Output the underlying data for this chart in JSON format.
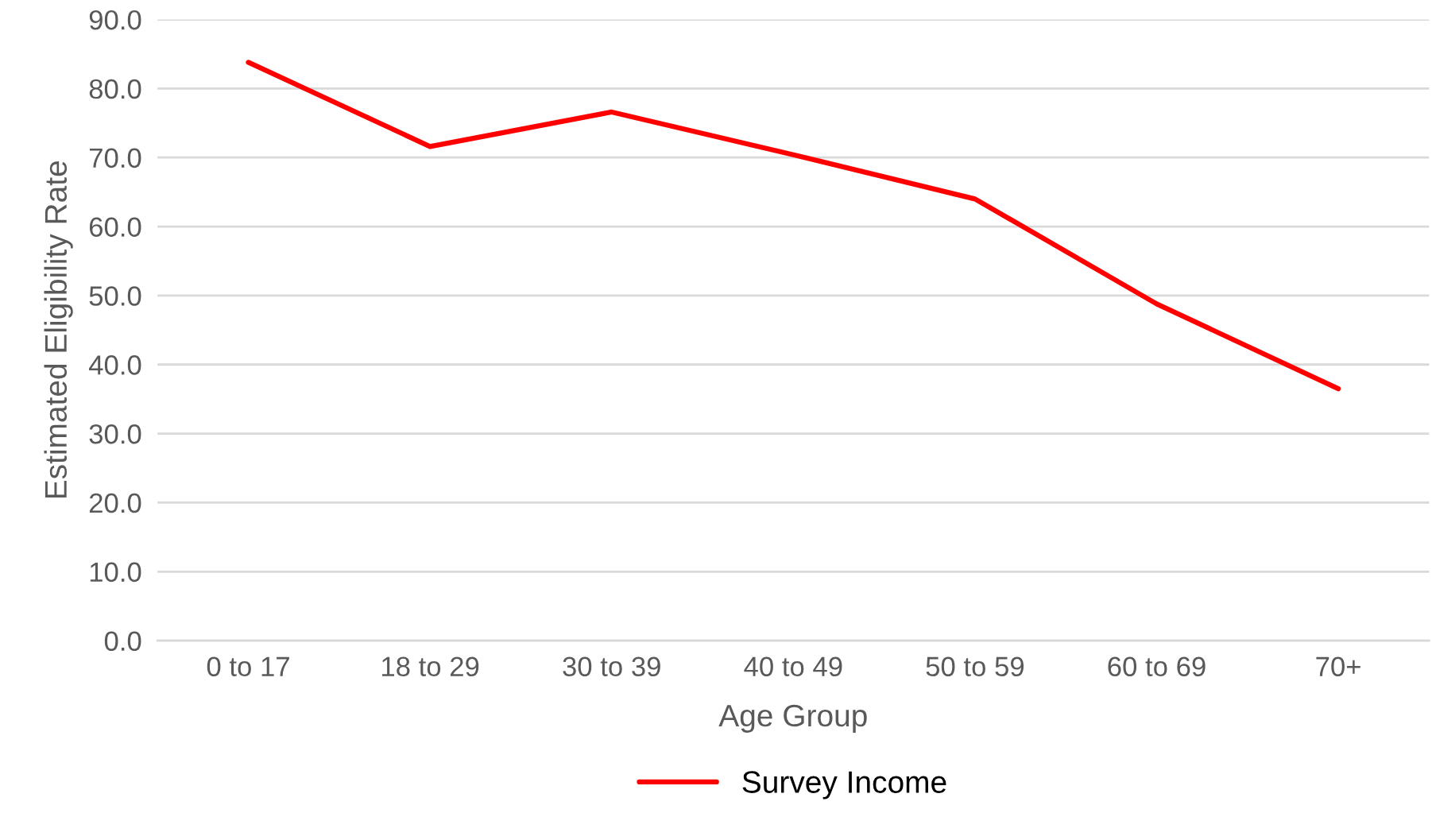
{
  "chart_data": {
    "type": "line",
    "xlabel": "Age Group",
    "ylabel": "Estimated Eligibility Rate",
    "categories": [
      "0 to 17",
      "18 to 29",
      "30 to 39",
      "40 to 49",
      "50 to 59",
      "60 to 69",
      "70+"
    ],
    "series": [
      {
        "name": "Survey Income",
        "color": "#ff0000",
        "values": [
          83.8,
          71.6,
          76.6,
          70.4,
          64.0,
          48.8,
          36.5
        ]
      }
    ],
    "ylim": [
      0,
      90
    ],
    "yticks": [
      {
        "value": 0,
        "label": "0.0"
      },
      {
        "value": 10,
        "label": "10.0"
      },
      {
        "value": 20,
        "label": "20.0"
      },
      {
        "value": 30,
        "label": "30.0"
      },
      {
        "value": 40,
        "label": "40.0"
      },
      {
        "value": 50,
        "label": "50.0"
      },
      {
        "value": 60,
        "label": "60.0"
      },
      {
        "value": 70,
        "label": "70.0"
      },
      {
        "value": 80,
        "label": "80.0"
      },
      {
        "value": 90,
        "label": "90.0"
      }
    ],
    "grid": "y",
    "legend": "bottom",
    "marker": "none",
    "line_style": "solid"
  }
}
